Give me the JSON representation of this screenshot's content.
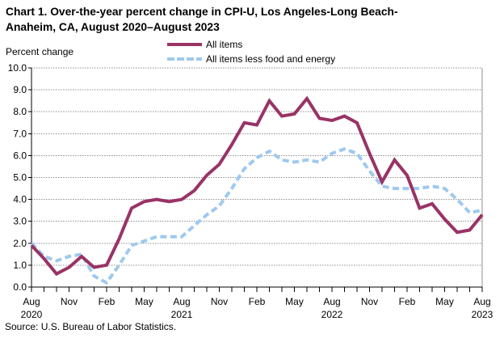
{
  "title": {
    "line1": "Chart 1. Over-the-year percent change in CPI-U, Los Angeles-Long Beach-",
    "line2": "Anaheim, CA, August 2020–August 2023"
  },
  "axes": {
    "y_title": "Percent change",
    "y_ticks": [
      "10.0",
      "9.0",
      "8.0",
      "7.0",
      "6.0",
      "5.0",
      "4.0",
      "3.0",
      "2.0",
      "1.0",
      "0.0"
    ],
    "x_ticks": [
      {
        "m": 0,
        "label": "Aug",
        "year": "2020"
      },
      {
        "m": 3,
        "label": "Nov"
      },
      {
        "m": 6,
        "label": "Feb"
      },
      {
        "m": 9,
        "label": "May"
      },
      {
        "m": 12,
        "label": "Aug",
        "year": "2021"
      },
      {
        "m": 15,
        "label": "Nov"
      },
      {
        "m": 18,
        "label": "Feb"
      },
      {
        "m": 21,
        "label": "May"
      },
      {
        "m": 24,
        "label": "Aug",
        "year": "2022"
      },
      {
        "m": 27,
        "label": "Nov"
      },
      {
        "m": 30,
        "label": "Feb"
      },
      {
        "m": 33,
        "label": "May"
      },
      {
        "m": 36,
        "label": "Aug",
        "year": "2023"
      }
    ]
  },
  "legend": [
    {
      "label": "All items"
    },
    {
      "label": "All items less food and energy"
    }
  ],
  "source": "Source: U.S. Bureau of Labor Statistics.",
  "colors": {
    "all_items": "#993366",
    "core": "#9fc9ef",
    "grid": "#8f8f8f",
    "axis": "#000000"
  },
  "chart_data": {
    "type": "line",
    "title": "Chart 1. Over-the-year percent change in CPI-U, Los Angeles-Long Beach-Anaheim, CA, August 2020–August 2023",
    "ylabel": "Percent change",
    "ylim": [
      0,
      10
    ],
    "ytick_step": 1.0,
    "grid": "horizontal-dotted",
    "legend_position": "top-center",
    "categories": [
      "Aug 2020",
      "Sep 2020",
      "Oct 2020",
      "Nov 2020",
      "Dec 2020",
      "Jan 2021",
      "Feb 2021",
      "Mar 2021",
      "Apr 2021",
      "May 2021",
      "Jun 2021",
      "Jul 2021",
      "Aug 2021",
      "Sep 2021",
      "Oct 2021",
      "Nov 2021",
      "Dec 2021",
      "Jan 2022",
      "Feb 2022",
      "Mar 2022",
      "Apr 2022",
      "May 2022",
      "Jun 2022",
      "Jul 2022",
      "Aug 2022",
      "Sep 2022",
      "Oct 2022",
      "Nov 2022",
      "Dec 2022",
      "Jan 2023",
      "Feb 2023",
      "Mar 2023",
      "Apr 2023",
      "May 2023",
      "Jun 2023",
      "Jul 2023",
      "Aug 2023"
    ],
    "series": [
      {
        "name": "All items",
        "style": "solid",
        "color": "#993366",
        "values": [
          1.9,
          1.3,
          0.6,
          0.9,
          1.4,
          0.9,
          1.0,
          2.2,
          3.6,
          3.9,
          4.0,
          3.9,
          4.0,
          4.4,
          5.1,
          5.6,
          6.5,
          7.5,
          7.4,
          8.5,
          7.8,
          7.9,
          8.6,
          7.7,
          7.6,
          7.8,
          7.5,
          6.1,
          4.8,
          5.8,
          5.1,
          3.6,
          3.8,
          3.1,
          2.5,
          2.6,
          3.3
        ]
      },
      {
        "name": "All items less food and energy",
        "style": "dashed",
        "color": "#9fc9ef",
        "values": [
          2.0,
          1.4,
          1.2,
          1.4,
          1.5,
          0.5,
          0.2,
          1.0,
          1.9,
          2.1,
          2.3,
          2.3,
          2.3,
          2.8,
          3.3,
          3.7,
          4.5,
          5.4,
          5.9,
          6.2,
          5.8,
          5.7,
          5.8,
          5.7,
          6.1,
          6.3,
          6.1,
          5.3,
          4.6,
          4.5,
          4.5,
          4.5,
          4.6,
          4.5,
          4.0,
          3.4,
          3.5
        ]
      }
    ]
  }
}
